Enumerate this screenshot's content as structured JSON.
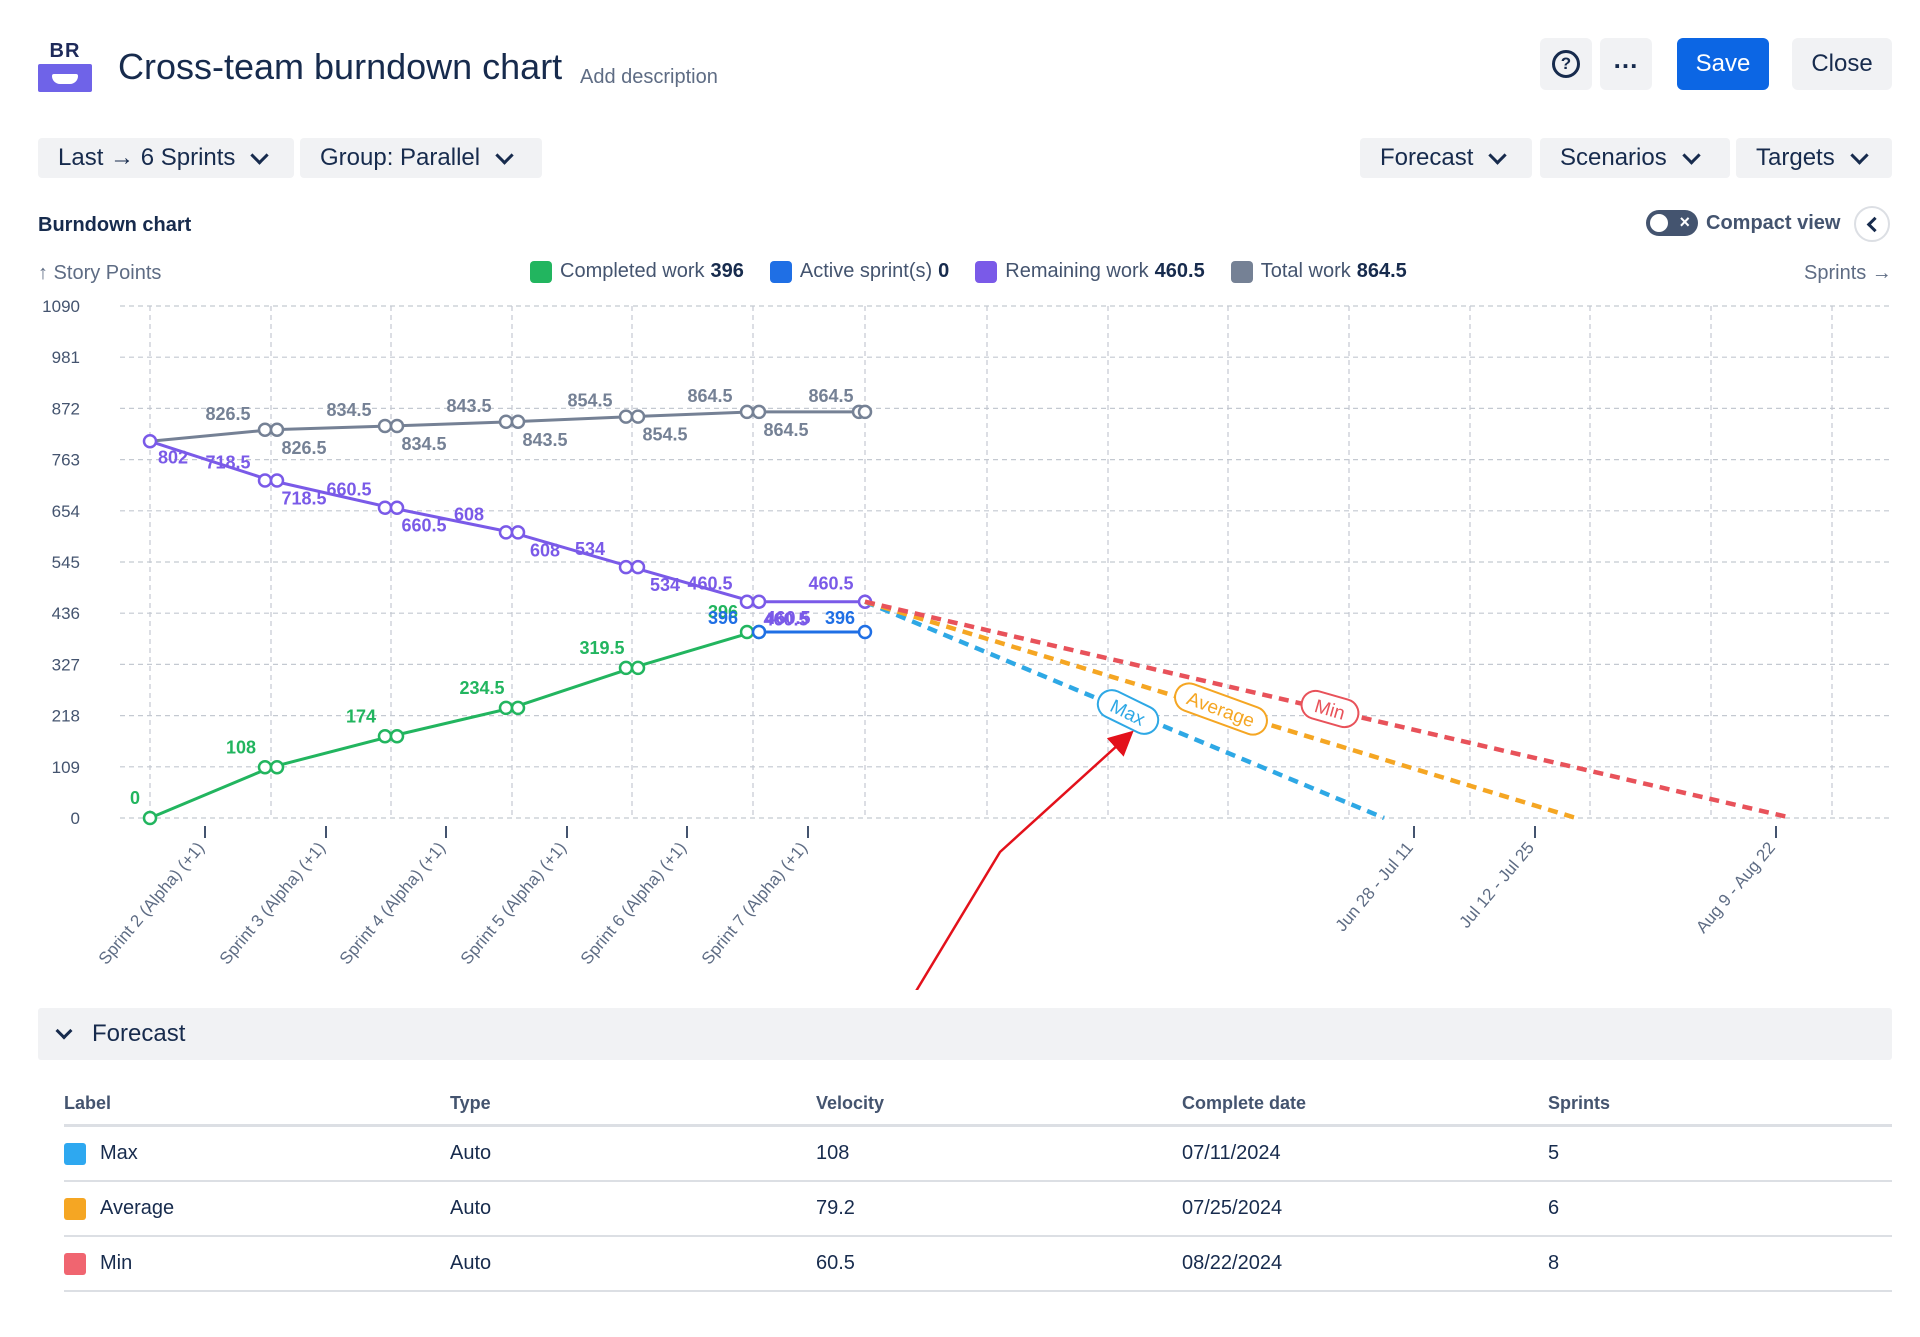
{
  "header": {
    "logo_text": "BR",
    "title": "Cross-team burndown chart",
    "add_description": "Add description",
    "help_icon": "question-circle-icon",
    "more_icon": "more-horizontal-icon",
    "save_label": "Save",
    "close_label": "Close"
  },
  "filters": {
    "range": "Last → 6 Sprints",
    "group": "Group: Parallel",
    "forecast": "Forecast",
    "scenarios": "Scenarios",
    "targets": "Targets"
  },
  "section": {
    "title": "Burndown chart",
    "compact_view": "Compact view",
    "compact_view_on": false,
    "y_axis_title": "↑ Story Points",
    "x_axis_title": "Sprints →"
  },
  "legend": [
    {
      "label": "Completed work",
      "value": "396",
      "color": "#22b55f"
    },
    {
      "label": "Active sprint(s)",
      "value": "0",
      "color": "#1f6fe5"
    },
    {
      "label": "Remaining work",
      "value": "460.5",
      "color": "#7a5ae8"
    },
    {
      "label": "Total work",
      "value": "864.5",
      "color": "#758195"
    }
  ],
  "chart_data": {
    "type": "line",
    "y_ticks": [
      "1090",
      "981",
      "872",
      "763",
      "654",
      "545",
      "436",
      "327",
      "218",
      "109",
      "0"
    ],
    "ylim": [
      0,
      1090
    ],
    "sprint_labels": [
      "Sprint 2 (Alpha) (+1)",
      "Sprint 3 (Alpha) (+1)",
      "Sprint 4 (Alpha) (+1)",
      "Sprint 5 (Alpha) (+1)",
      "Sprint 6 (Alpha) (+1)",
      "Sprint 7 (Alpha) (+1)"
    ],
    "forecast_tick_labels": [
      "Jun 28 - Jul 11",
      "Jul 12 - Jul 25",
      "Aug 9 - Aug 22"
    ],
    "grid": true,
    "series": [
      {
        "name": "Total work",
        "color": "#758195",
        "points": [
          802,
          826.5,
          834.5,
          843.5,
          854.5,
          864.5,
          864.5
        ],
        "labels_above": [
          "826.5",
          "834.5",
          "843.5",
          "854.5",
          "864.5",
          "864.5"
        ],
        "labels_below": [
          "826.5",
          "834.5",
          "843.5",
          "854.5",
          "864.5"
        ]
      },
      {
        "name": "Remaining work",
        "color": "#7a5ae8",
        "points": [
          802,
          718.5,
          660.5,
          608,
          534,
          460.5,
          460.5
        ],
        "labels_above": [
          "718.5",
          "660.5",
          "608",
          "534",
          "460.5",
          "460.5"
        ],
        "labels_below": [
          "802",
          "718.5",
          "660.5",
          "608",
          "534",
          "460.5"
        ]
      },
      {
        "name": "Completed work",
        "color": "#22b55f",
        "points": [
          0,
          108,
          174,
          234.5,
          319.5,
          396
        ],
        "labels": [
          "0",
          "108",
          "174",
          "234.5",
          "319.5",
          "396"
        ]
      },
      {
        "name": "Active sprint(s)",
        "color": "#1f6fe5",
        "points": [
          396,
          396
        ],
        "labels": [
          "396",
          "396"
        ]
      }
    ],
    "forecasts": [
      {
        "name": "Max",
        "color": "#2ea8e5",
        "start": 460.5,
        "end": 0
      },
      {
        "name": "Average",
        "color": "#f5a623",
        "start": 460.5,
        "end": 0
      },
      {
        "name": "Min",
        "color": "#e8525a",
        "start": 460.5,
        "end": 0
      }
    ]
  },
  "forecast_table": {
    "title": "Forecast",
    "columns": [
      "Label",
      "Type",
      "Velocity",
      "Complete date",
      "Sprints"
    ],
    "rows": [
      {
        "label": "Max",
        "color": "#2ea8f0",
        "type": "Auto",
        "velocity": "108",
        "complete_date": "07/11/2024",
        "sprints": "5"
      },
      {
        "label": "Average",
        "color": "#f5a623",
        "type": "Auto",
        "velocity": "79.2",
        "complete_date": "07/25/2024",
        "sprints": "6"
      },
      {
        "label": "Min",
        "color": "#f06570",
        "type": "Auto",
        "velocity": "60.5",
        "complete_date": "08/22/2024",
        "sprints": "8"
      }
    ]
  }
}
